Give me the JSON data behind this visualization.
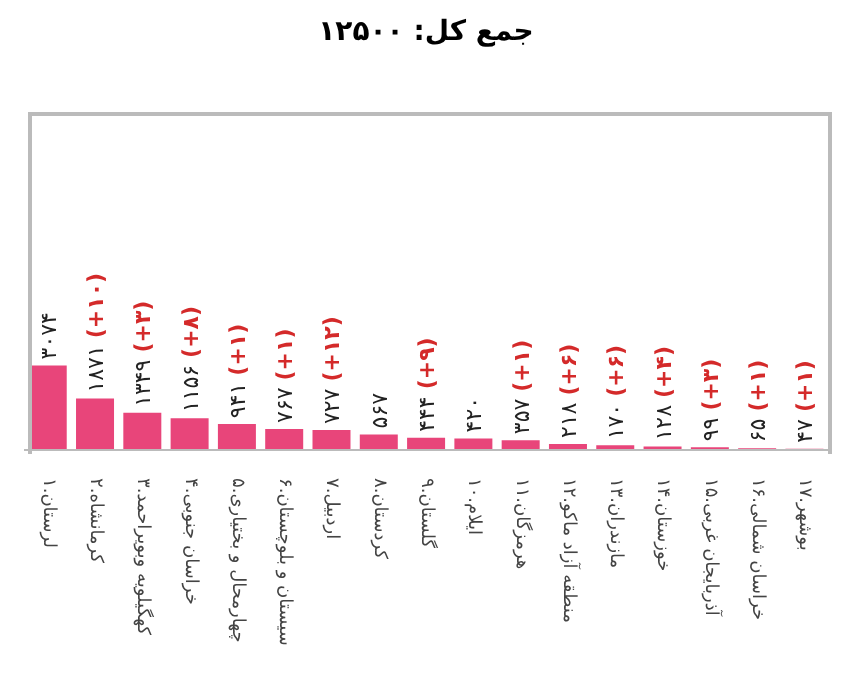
{
  "chart_data": {
    "type": "bar",
    "title": "جمع کل: ۱۲۵۰۰",
    "categories": [
      "۱.لرستان",
      "۲.کرمانشاه",
      "۳.کهگیلویه وبویراحمد",
      "۴.خراسان جنوبی",
      "۵.چهارمحال و بختیاری",
      "۶.سیستان و بلوچستان",
      "۷.اردبیل",
      "۸.کردستان",
      "۹.گلستان",
      "۱۰.ایلام",
      "۱۱.هرمزگان",
      "۱۲.منطقه آزاد ماکو",
      "۱۳.مازندران",
      "۱۴.خوزستان",
      "۱۵.آذربایجان غربی",
      "۱۶.خراسان شمالی",
      "۱۷.بوشهر"
    ],
    "values": [
      3074,
      1871,
      1349,
      1156,
      941,
      767,
      727,
      567,
      444,
      420,
      357,
      218,
      170,
      128,
      99,
      65,
      47
    ],
    "value_labels": [
      "۳۰۷۴",
      "۱۸۷۱ (+۱۰)",
      "۱۳۴۹ (+۳)",
      "۱۱۵۶ (+۸)",
      "۹۴۱ (+۱)",
      "۷۶۷ (+۱)",
      "۷۲۷ (+۱۲)",
      "۵۶۷",
      "۴۴۴ (+۹)",
      "۴۲۰",
      "۳۵۷ (+۱)",
      "۲۱۸ (+۶)",
      "۱۷۰ (+۶)",
      "۱۲۸ (+۴)",
      "۹۹ (+۳)",
      "۶۵ (+۱)",
      "۴۷ (+۱)"
    ],
    "color": "#e8457a"
  }
}
